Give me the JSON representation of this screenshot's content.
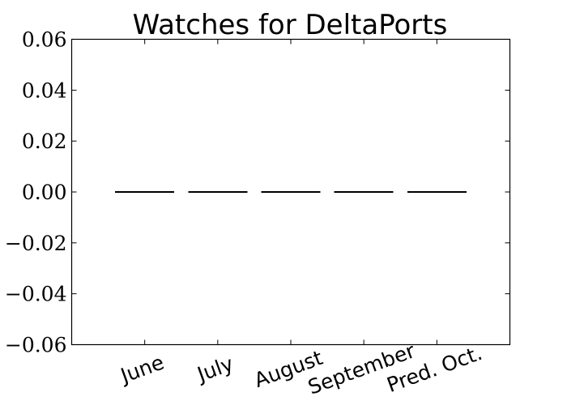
{
  "chart_data": {
    "type": "bar",
    "title": "Watches for DeltaPorts",
    "xlabel": "",
    "ylabel": "",
    "categories": [
      "June",
      "July",
      "August",
      "September",
      "Pred. Oct."
    ],
    "values": [
      0,
      0,
      0,
      0,
      0
    ],
    "ylim": [
      -0.06,
      0.06
    ],
    "yticks": [
      0.06,
      0.04,
      0.02,
      0.0,
      -0.02,
      -0.04,
      -0.06
    ],
    "ytick_labels": [
      "0.06",
      "0.04",
      "0.02",
      "0.00",
      "−0.02",
      "−0.04",
      "−0.06"
    ],
    "xtick_rotation_deg": -20,
    "grid": false,
    "legend": "none",
    "colors": {
      "bar_edge": "#000000",
      "bar_fill": "#000000",
      "axis": "#000000",
      "background": "#ffffff"
    }
  }
}
